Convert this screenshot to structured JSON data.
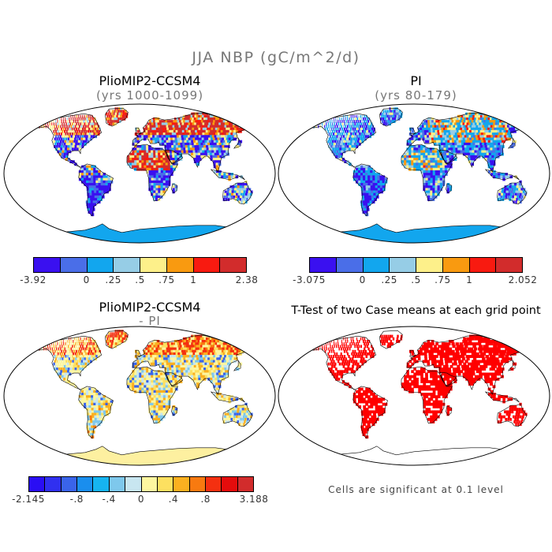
{
  "title": "JJA NBP (gC/m^2/d)",
  "panels": {
    "p1": {
      "title": "PlioMIP2-CCSM4",
      "subtitle": "(yrs 1000-1099)"
    },
    "p2": {
      "title": "PI",
      "subtitle": "(yrs 80-179)"
    },
    "p3": {
      "title": "PlioMIP2-CCSM4",
      "subtitle": "- PI"
    },
    "p4": {
      "title": "T-Test of two Case means at each grid point",
      "note": "Cells are significant at 0.1 level"
    }
  },
  "colorbars": {
    "cb1": {
      "colors": [
        "#3a10f0",
        "#4a6ee8",
        "#12a6ee",
        "#96cde6",
        "#fdf08a",
        "#f99a10",
        "#f81a10",
        "#d22c2c"
      ],
      "labels": [
        "-3.92",
        "0",
        ".25",
        ".5",
        ".75",
        "1",
        "2.38"
      ]
    },
    "cb2": {
      "colors": [
        "#3a10f0",
        "#4a6ee8",
        "#12a6ee",
        "#96cde6",
        "#fdf08a",
        "#f99a10",
        "#f81a10",
        "#d22c2c"
      ],
      "labels": [
        "-3.075",
        "0",
        ".25",
        ".5",
        ".75",
        "1",
        "2.052"
      ]
    },
    "cb3": {
      "colors": [
        "#2a0ef4",
        "#3030f0",
        "#3a64ea",
        "#1a8eee",
        "#16b4f0",
        "#7ec8ec",
        "#c8e6f0",
        "#fdf6a0",
        "#fde060",
        "#fbb020",
        "#f87a10",
        "#f43010",
        "#e40c0c",
        "#d22c2c"
      ],
      "labels": [
        "-2.145",
        "-.8",
        "-.4",
        "0",
        ".4",
        ".8",
        "3.188"
      ]
    }
  },
  "palettes": {
    "p1": [
      "#3a10f0",
      "#3a10f0",
      "#4a6ee8",
      "#12a6ee",
      "#96cde6",
      "#fdf08a",
      "#f99a10",
      "#f81a10",
      "#d22c2c"
    ],
    "p2": [
      "#3a10f0",
      "#4a6ee8",
      "#12a6ee",
      "#12a6ee",
      "#96cde6",
      "#fdf08a",
      "#f99a10",
      "#f81a10"
    ],
    "p3": [
      "#3a64ea",
      "#7ec8ec",
      "#c8e6f0",
      "#fdf6a0",
      "#fdf6a0",
      "#fde060",
      "#fbb020",
      "#f87a10",
      "#f43010"
    ],
    "p4": [
      "#ff0000"
    ],
    "antarctica": {
      "p1": "#12a6ee",
      "p2": "#12a6ee",
      "p3": "#fdf0a0",
      "p4": "#ffffff"
    }
  }
}
